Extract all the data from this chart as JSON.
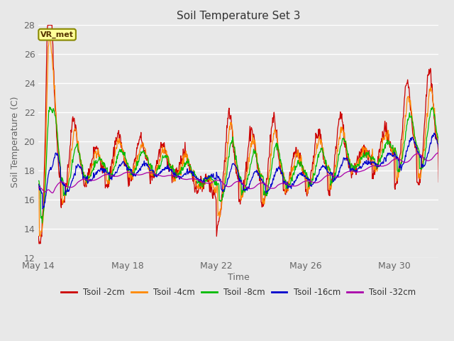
{
  "title": "Soil Temperature Set 3",
  "xlabel": "Time",
  "ylabel": "Soil Temperature (C)",
  "ylim": [
    12,
    28
  ],
  "yticks": [
    12,
    14,
    16,
    18,
    20,
    22,
    24,
    26,
    28
  ],
  "plot_bg_color": "#e8e8e8",
  "fig_bg_color": "#e8e8e8",
  "legend_label": "VR_met",
  "line_colors": {
    "2cm": "#cc0000",
    "4cm": "#ff8800",
    "8cm": "#00bb00",
    "16cm": "#0000cc",
    "32cm": "#aa00aa"
  },
  "legend_entries": [
    "Tsoil -2cm",
    "Tsoil -4cm",
    "Tsoil -8cm",
    "Tsoil -16cm",
    "Tsoil -32cm"
  ],
  "xtick_days": [
    0,
    4,
    8,
    12,
    16
  ],
  "xtick_labels": [
    "May 14",
    "May 18",
    "May 22",
    "May 26",
    "May 30"
  ],
  "xlim": [
    0,
    18
  ]
}
